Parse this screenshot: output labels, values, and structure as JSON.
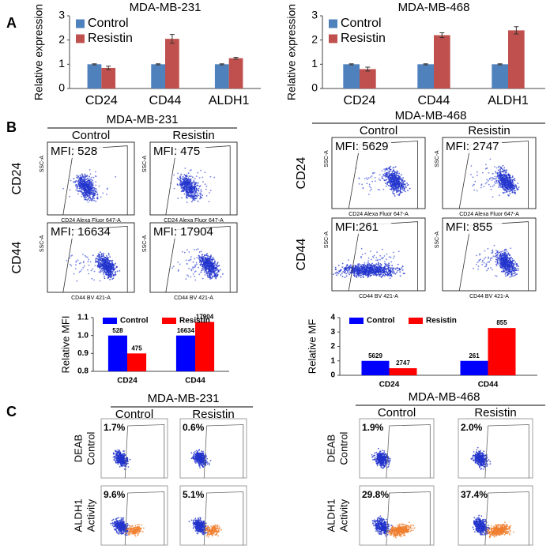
{
  "chart_data": [
    {
      "type": "bar",
      "title": "MDA-MB-231",
      "ylabel": "Relative expression",
      "categories": [
        "CD24",
        "CD44",
        "ALDH1"
      ],
      "series": [
        {
          "name": "Control",
          "color": "#4f81bd",
          "values": [
            1.0,
            1.0,
            1.0
          ],
          "errors": [
            0.02,
            0.02,
            0.02
          ]
        },
        {
          "name": "Resistin",
          "color": "#c0504d",
          "values": [
            0.85,
            2.05,
            1.25
          ],
          "errors": [
            0.07,
            0.18,
            0.04
          ]
        }
      ],
      "ylim": [
        0,
        3
      ],
      "yticks": [
        0,
        1,
        2,
        3
      ],
      "legend": "top-left"
    },
    {
      "type": "bar",
      "title": "MDA-MB-468",
      "ylabel": "Relative expression",
      "categories": [
        "CD24",
        "CD44",
        "ALDH1"
      ],
      "series": [
        {
          "name": "Control",
          "color": "#4f81bd",
          "values": [
            1.0,
            1.0,
            1.0
          ],
          "errors": [
            0.02,
            0.02,
            0.02
          ]
        },
        {
          "name": "Resistin",
          "color": "#c0504d",
          "values": [
            0.8,
            2.2,
            2.4
          ],
          "errors": [
            0.08,
            0.1,
            0.15
          ]
        }
      ],
      "ylim": [
        0,
        3
      ],
      "yticks": [
        0,
        1,
        2,
        3
      ],
      "legend": "top-left"
    },
    {
      "type": "bar",
      "ylabel": "Relative MFI",
      "categories": [
        "CD24",
        "CD44"
      ],
      "series": [
        {
          "name": "Control",
          "color": "#0000ff",
          "values": [
            1.0,
            1.0
          ],
          "mfi": [
            528,
            16634
          ]
        },
        {
          "name": "Resistin",
          "color": "#ff0000",
          "values": [
            0.9,
            1.076
          ],
          "mfi": [
            475,
            17904
          ]
        }
      ],
      "ylim": [
        0.8,
        1.1
      ],
      "yticks": [
        0.8,
        0.9,
        {
          "value": 1,
          "label": "1.0"
        },
        1.1
      ],
      "legend": "top"
    },
    {
      "type": "bar",
      "ylabel": "Relative MF",
      "categories": [
        "CD24",
        "CD44"
      ],
      "series": [
        {
          "name": "Control",
          "color": "#0000ff",
          "values": [
            1.0,
            1.0
          ],
          "mfi": [
            5629,
            261
          ]
        },
        {
          "name": "Resistin",
          "color": "#ff0000",
          "values": [
            0.49,
            3.28
          ],
          "mfi": [
            2747,
            855
          ]
        }
      ],
      "ylim": [
        0,
        4
      ],
      "yticks": [
        0,
        1,
        2,
        3,
        4
      ],
      "legend": "top"
    }
  ],
  "panels": {
    "labels": [
      "A",
      "B",
      "C"
    ],
    "flow_b": [
      {
        "title": "MDA-MB-231",
        "columns": [
          "Control",
          "Resistin"
        ],
        "rows": [
          "CD24",
          "CD44"
        ],
        "mfi": [
          [
            "MFI: 528",
            "MFI: 475"
          ],
          [
            "MFI: 16634",
            "MFI: 17904"
          ]
        ],
        "x_axis": [
          "CD24 Alexa Fluor 647-A",
          "CD44 BV 421-A"
        ],
        "y_axis": "SSC-A"
      },
      {
        "title": "MDA-MB-468",
        "columns": [
          "Control",
          "Resistin"
        ],
        "rows": [
          "CD24",
          "CD44"
        ],
        "mfi": [
          [
            "MFI: 5629",
            "MFI: 2747"
          ],
          [
            "MFI:261",
            "MFI: 855"
          ]
        ],
        "x_axis": [
          "CD24 Alexa Fluor 647-A",
          "CD44 BV 421-A"
        ],
        "y_axis": "SSC-A"
      }
    ],
    "flow_c": [
      {
        "title": "MDA-MB-231",
        "columns": [
          "Control",
          "Resistin"
        ],
        "rows": [
          [
            "DEAB",
            "Control"
          ],
          [
            "ALDH1",
            "Activity"
          ]
        ],
        "pct": [
          [
            "1.7%",
            "0.6%"
          ],
          [
            "9.6%",
            "5.1%"
          ]
        ]
      },
      {
        "title": "MDA-MB-468",
        "columns": [
          "Control",
          "Resistin"
        ],
        "rows": [
          [
            "DEAB",
            "Control"
          ],
          [
            "ALDH1",
            "Activity"
          ]
        ],
        "pct": [
          [
            "1.9%",
            "2.0%"
          ],
          [
            "29.8%",
            "37.4%"
          ]
        ]
      }
    ]
  }
}
